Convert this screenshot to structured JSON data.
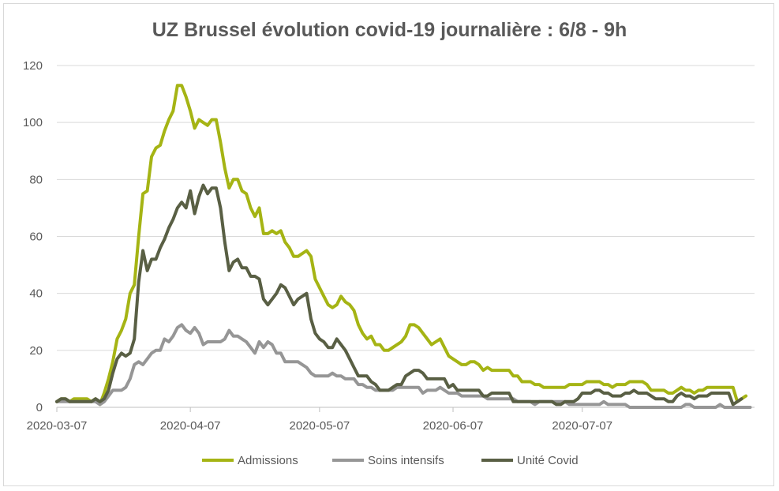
{
  "chart_data": {
    "type": "line",
    "title": "UZ Brussel évolution covid-19 journalière : 6/8 - 9h",
    "xlabel": "",
    "ylabel": "",
    "ylim": [
      0,
      120
    ],
    "y_ticks": [
      "0",
      "20",
      "40",
      "60",
      "80",
      "100",
      "120"
    ],
    "x_start": "2020-03-07",
    "x_ticks": [
      {
        "label": "2020-03-07",
        "day": 0
      },
      {
        "label": "2020-04-07",
        "day": 31
      },
      {
        "label": "2020-05-07",
        "day": 61
      },
      {
        "label": "2020-06-07",
        "day": 92
      },
      {
        "label": "2020-07-07",
        "day": 122
      }
    ],
    "grid": true,
    "legend_position": "bottom",
    "series": [
      {
        "name": "Admissions",
        "color": "#a5b414",
        "values": [
          2,
          3,
          3,
          2,
          3,
          3,
          3,
          3,
          2,
          3,
          1,
          5,
          10,
          16,
          24,
          27,
          31,
          40,
          43,
          60,
          75,
          76,
          88,
          91,
          92,
          97,
          101,
          104,
          113,
          113,
          109,
          104,
          98,
          101,
          100,
          99,
          101,
          101,
          93,
          84,
          77,
          80,
          80,
          76,
          75,
          70,
          67,
          70,
          61,
          61,
          62,
          61,
          62,
          58,
          56,
          53,
          53,
          54,
          55,
          53,
          45,
          42,
          39,
          36,
          35,
          36,
          39,
          37,
          36,
          34,
          29,
          26,
          24,
          25,
          22,
          22,
          20,
          20,
          21,
          22,
          23,
          25,
          29,
          29,
          28,
          26,
          24,
          22,
          23,
          24,
          21,
          18,
          17,
          16,
          15,
          15,
          16,
          16,
          15,
          13,
          14,
          13,
          13,
          13,
          13,
          13,
          11,
          11,
          9,
          9,
          9,
          8,
          8,
          7,
          7,
          7,
          7,
          7,
          7,
          8,
          8,
          8,
          8,
          9,
          9,
          9,
          9,
          8,
          8,
          7,
          8,
          8,
          8,
          9,
          9,
          9,
          9,
          8,
          6,
          6,
          6,
          6,
          5,
          5,
          6,
          7,
          6,
          6,
          5,
          6,
          6,
          7,
          7,
          7,
          7,
          7,
          7,
          7,
          2,
          3,
          4
        ]
      },
      {
        "name": "Soins intensifs",
        "color": "#969696",
        "values": [
          2,
          2,
          2,
          2,
          2,
          2,
          2,
          2,
          2,
          2,
          1,
          2,
          4,
          6,
          6,
          6,
          7,
          10,
          15,
          16,
          15,
          17,
          19,
          20,
          20,
          24,
          23,
          25,
          28,
          29,
          27,
          26,
          28,
          26,
          22,
          23,
          23,
          23,
          23,
          24,
          27,
          25,
          25,
          24,
          23,
          21,
          19,
          23,
          21,
          23,
          22,
          19,
          19,
          16,
          16,
          16,
          16,
          15,
          14,
          12,
          11,
          11,
          11,
          11,
          12,
          11,
          11,
          10,
          10,
          10,
          8,
          8,
          7,
          7,
          6,
          6,
          6,
          6,
          6,
          7,
          7,
          7,
          7,
          7,
          7,
          5,
          6,
          6,
          6,
          7,
          6,
          5,
          5,
          5,
          4,
          4,
          4,
          4,
          4,
          4,
          3,
          3,
          3,
          3,
          3,
          3,
          3,
          2,
          2,
          2,
          2,
          1,
          2,
          2,
          2,
          2,
          2,
          2,
          2,
          1,
          1,
          1,
          1,
          1,
          1,
          1,
          1,
          2,
          1,
          1,
          1,
          1,
          1,
          0,
          0,
          0,
          0,
          0,
          0,
          0,
          0,
          0,
          0,
          0,
          0,
          0,
          1,
          1,
          0,
          0,
          0,
          0,
          0,
          0,
          1,
          0,
          0,
          0,
          0,
          0,
          0,
          0
        ]
      },
      {
        "name": "Unité Covid",
        "color": "#595f44",
        "values": [
          2,
          3,
          3,
          2,
          2,
          2,
          2,
          2,
          2,
          3,
          2,
          3,
          6,
          12,
          17,
          19,
          18,
          19,
          24,
          44,
          55,
          48,
          52,
          52,
          56,
          59,
          63,
          66,
          70,
          72,
          70,
          76,
          68,
          74,
          78,
          75,
          77,
          77,
          70,
          58,
          48,
          51,
          52,
          49,
          49,
          46,
          46,
          45,
          38,
          36,
          38,
          40,
          43,
          42,
          39,
          36,
          38,
          39,
          40,
          31,
          26,
          24,
          23,
          21,
          21,
          24,
          22,
          20,
          17,
          14,
          11,
          11,
          11,
          9,
          8,
          6,
          6,
          6,
          7,
          8,
          8,
          11,
          12,
          13,
          13,
          12,
          10,
          10,
          10,
          10,
          10,
          7,
          8,
          6,
          6,
          6,
          6,
          6,
          6,
          4,
          4,
          5,
          5,
          5,
          5,
          5,
          2,
          2,
          2,
          2,
          2,
          2,
          2,
          2,
          2,
          2,
          1,
          1,
          2,
          2,
          2,
          3,
          5,
          5,
          5,
          6,
          6,
          5,
          5,
          4,
          4,
          4,
          5,
          5,
          6,
          5,
          5,
          5,
          4,
          3,
          3,
          3,
          2,
          2,
          4,
          5,
          4,
          4,
          3,
          4,
          4,
          4,
          5,
          5,
          5,
          5,
          5,
          1,
          2,
          3
        ]
      }
    ]
  }
}
